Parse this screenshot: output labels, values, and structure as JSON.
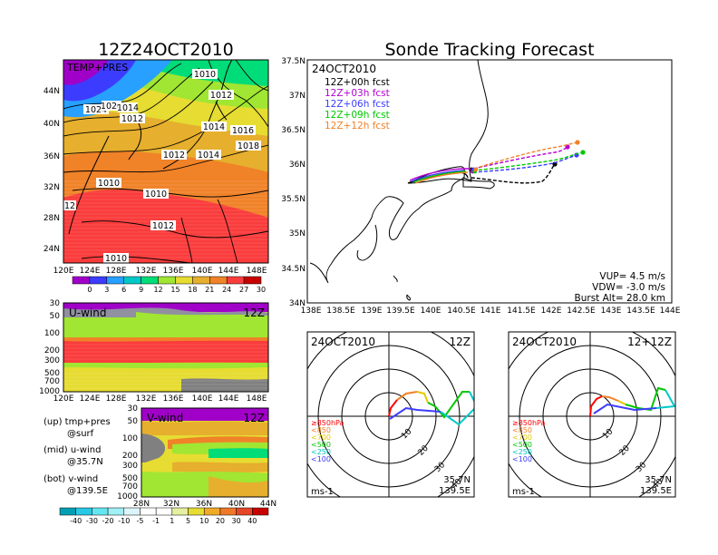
{
  "titles": {
    "left": "12Z24OCT2010",
    "right": "Sonde Tracking Forecast"
  },
  "map_small": {
    "label": "TEMP+PRES",
    "xticks": [
      "120E",
      "124E",
      "128E",
      "132E",
      "136E",
      "140E",
      "144E",
      "148E"
    ],
    "yticks": [
      "24N",
      "28N",
      "32N",
      "36N",
      "40N",
      "44N"
    ],
    "isobar_labels": [
      "1010",
      "1012",
      "1024",
      "1020",
      "1014",
      "1012",
      "1014",
      "1016",
      "1018",
      "1012",
      "1014",
      "1010",
      "1010",
      "1012",
      "1010",
      "12",
      "1010"
    ],
    "colorbar_ticks": [
      "0",
      "3",
      "6",
      "9",
      "12",
      "15",
      "18",
      "21",
      "24",
      "27",
      "30"
    ],
    "colors": [
      "#a000c8",
      "#3c3cff",
      "#28a0ff",
      "#00c8c8",
      "#00dc78",
      "#a0e632",
      "#e6dc32",
      "#e6af2d",
      "#f08228",
      "#fa3c3c",
      "#c80000"
    ]
  },
  "uwind": {
    "label": "U-wind",
    "time": "12Z",
    "yticks": [
      "30",
      "50",
      "100",
      "200",
      "300",
      "500",
      "700",
      "1000"
    ],
    "xticks": [
      "120E",
      "124E",
      "128E",
      "132E",
      "136E",
      "140E",
      "144E",
      "148E"
    ]
  },
  "vwind": {
    "label": "V-wind",
    "time": "12Z",
    "yticks": [
      "30",
      "50",
      "100",
      "200",
      "300",
      "500",
      "700",
      "1000"
    ],
    "xticks": [
      "28N",
      "32N",
      "36N",
      "40N",
      "44N"
    ],
    "colorbar_ticks": [
      "-40",
      "-30",
      "-20",
      "-10",
      "-5",
      "-1",
      "1",
      "5",
      "10",
      "20",
      "30",
      "40"
    ]
  },
  "legend_notes": [
    {
      "line1": "(up) tmp+pres",
      "line2": "@surf"
    },
    {
      "line1": "(mid) u-wind",
      "line2": "@35.7N"
    },
    {
      "line1": "(bot) v-wind",
      "line2": "@139.5E"
    }
  ],
  "track_map": {
    "date": "24OCT2010",
    "forecasts": [
      {
        "label": "12Z+00h fcst",
        "color": "#000000"
      },
      {
        "label": "12Z+03h fcst",
        "color": "#b400d2"
      },
      {
        "label": "12Z+06h fcst",
        "color": "#3c3cff"
      },
      {
        "label": "12Z+09h fcst",
        "color": "#00c800"
      },
      {
        "label": "12Z+12h fcst",
        "color": "#f08228"
      }
    ],
    "yticks": [
      "34N",
      "34.5N",
      "35N",
      "35.5N",
      "36N",
      "36.5N",
      "37N",
      "37.5N"
    ],
    "xticks": [
      "138E",
      "138.5E",
      "139E",
      "139.5E",
      "140E",
      "140.5E",
      "141E",
      "141.5E",
      "142E",
      "142.5E",
      "143E",
      "143.5E",
      "144E"
    ],
    "info": [
      "VUP= 4.5 m/s",
      "VDW= -3.0 m/s",
      "Burst Alt= 28.0 km"
    ]
  },
  "hodo_left": {
    "date": "24OCT2010",
    "time": "12Z",
    "unit": "ms-1",
    "lat": "35.7N",
    "lon": "139.5E"
  },
  "hodo_right": {
    "date": "24OCT2010",
    "time": "12+12Z",
    "unit": "ms-1",
    "lat": "35.7N",
    "lon": "139.5E"
  },
  "hodo_legend": [
    {
      "label": "≥850hPa",
      "color": "#ff0000"
    },
    {
      "label": "<850",
      "color": "#f08228"
    },
    {
      "label": "<700",
      "color": "#e6c800"
    },
    {
      "label": "<500",
      "color": "#00c800"
    },
    {
      "label": "<250",
      "color": "#00c8c8"
    },
    {
      "label": "<100",
      "color": "#3c3cff"
    }
  ],
  "ring_labels": [
    "10",
    "20",
    "30",
    "40"
  ]
}
